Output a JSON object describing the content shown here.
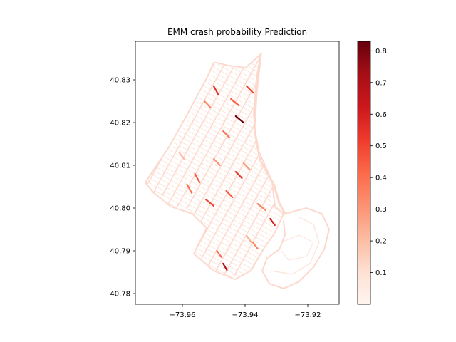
{
  "chart_data": {
    "type": "map",
    "title": "EMM crash probability Prediction",
    "xlabel": "",
    "ylabel": "",
    "xlim": [
      -73.975,
      -73.91
    ],
    "ylim": [
      40.7775,
      40.839
    ],
    "x_ticks": [
      -73.96,
      -73.94,
      -73.92
    ],
    "x_tick_labels": [
      "−73.96",
      "−73.94",
      "−73.92"
    ],
    "y_ticks": [
      40.78,
      40.79,
      40.8,
      40.81,
      40.82,
      40.83
    ],
    "y_tick_labels": [
      "40.78",
      "40.79",
      "40.80",
      "40.81",
      "40.82",
      "40.83"
    ],
    "colorbar": {
      "cmap": "Reds",
      "range": [
        0.0,
        0.83
      ],
      "ticks": [
        0.1,
        0.2,
        0.3,
        0.4,
        0.5,
        0.6,
        0.7,
        0.8
      ],
      "tick_labels": [
        "0.1",
        "0.2",
        "0.3",
        "0.4",
        "0.5",
        "0.6",
        "0.7",
        "0.8"
      ],
      "colors": [
        "#fff5f0",
        "#fee0d2",
        "#fcbba1",
        "#fc9272",
        "#fb6a4a",
        "#ef3b2c",
        "#cb181d",
        "#a50f15",
        "#67000d"
      ]
    },
    "segments": [
      {
        "lon1": -73.943,
        "lat1": 40.8215,
        "lon2": -73.9405,
        "lat2": 40.82,
        "p": 0.83
      },
      {
        "lon1": -73.95,
        "lat1": 40.8285,
        "lon2": -73.9485,
        "lat2": 40.8265,
        "p": 0.55
      },
      {
        "lon1": -73.9445,
        "lat1": 40.8255,
        "lon2": -73.942,
        "lat2": 40.824,
        "p": 0.45
      },
      {
        "lon1": -73.947,
        "lat1": 40.818,
        "lon2": -73.945,
        "lat2": 40.8165,
        "p": 0.4
      },
      {
        "lon1": -73.953,
        "lat1": 40.825,
        "lon2": -73.951,
        "lat2": 40.8235,
        "p": 0.35
      },
      {
        "lon1": -73.9395,
        "lat1": 40.8285,
        "lon2": -73.9375,
        "lat2": 40.827,
        "p": 0.5
      },
      {
        "lon1": -73.956,
        "lat1": 40.808,
        "lon2": -73.9545,
        "lat2": 40.806,
        "p": 0.45
      },
      {
        "lon1": -73.943,
        "lat1": 40.8085,
        "lon2": -73.941,
        "lat2": 40.807,
        "p": 0.55
      },
      {
        "lon1": -73.9525,
        "lat1": 40.802,
        "lon2": -73.95,
        "lat2": 40.8005,
        "p": 0.5
      },
      {
        "lon1": -73.9585,
        "lat1": 40.8055,
        "lon2": -73.957,
        "lat2": 40.8035,
        "p": 0.4
      },
      {
        "lon1": -73.9405,
        "lat1": 40.8105,
        "lon2": -73.9385,
        "lat2": 40.809,
        "p": 0.3
      },
      {
        "lon1": -73.936,
        "lat1": 40.801,
        "lon2": -73.9335,
        "lat2": 40.7995,
        "p": 0.35
      },
      {
        "lon1": -73.932,
        "lat1": 40.7975,
        "lon2": -73.9305,
        "lat2": 40.796,
        "p": 0.6
      },
      {
        "lon1": -73.946,
        "lat1": 40.804,
        "lon2": -73.944,
        "lat2": 40.8025,
        "p": 0.45
      },
      {
        "lon1": -73.9375,
        "lat1": 40.792,
        "lon2": -73.936,
        "lat2": 40.7905,
        "p": 0.35
      },
      {
        "lon1": -73.949,
        "lat1": 40.79,
        "lon2": -73.9475,
        "lat2": 40.7885,
        "p": 0.4
      },
      {
        "lon1": -73.947,
        "lat1": 40.787,
        "lon2": -73.9458,
        "lat2": 40.7855,
        "p": 0.7
      },
      {
        "lon1": -73.9395,
        "lat1": 40.7935,
        "lon2": -73.938,
        "lat2": 40.792,
        "p": 0.25
      },
      {
        "lon1": -73.961,
        "lat1": 40.813,
        "lon2": -73.9595,
        "lat2": 40.8115,
        "p": 0.2
      },
      {
        "lon1": -73.95,
        "lat1": 40.8115,
        "lon2": -73.948,
        "lat2": 40.81,
        "p": 0.3
      }
    ]
  }
}
